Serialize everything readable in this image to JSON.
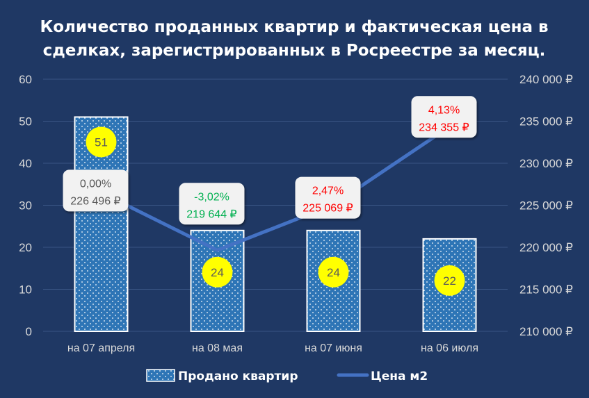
{
  "chart_data": {
    "type": "bar+line",
    "title_lines": [
      "Количество проданных квартир и фактическая цена в",
      "сделках, зарегистрированных в Росреестре за месяц."
    ],
    "categories": [
      "на 07 апреля",
      "на 08 мая",
      "на 07 июня",
      "на 06 июля"
    ],
    "bar_series": {
      "name": "Продано квартир",
      "values": [
        51,
        24,
        24,
        22
      ],
      "labels": [
        "51",
        "24",
        "24",
        "22"
      ]
    },
    "line_series": {
      "name": "Цена м2",
      "values": [
        226496,
        219644,
        225069,
        234355
      ],
      "price_labels": [
        "226 496 ₽",
        "219 644 ₽",
        "225 069 ₽",
        "234 355 ₽"
      ],
      "change_labels": [
        "0,00%",
        "-3,02%",
        "2,47%",
        "4,13%"
      ]
    },
    "y_left": {
      "min": 0,
      "max": 60,
      "ticks": [
        "0",
        "10",
        "20",
        "30",
        "40",
        "50",
        "60"
      ]
    },
    "y_right": {
      "min": 210000,
      "max": 240000,
      "ticks": [
        "210 000 ₽",
        "215 000 ₽",
        "220 000 ₽",
        "225 000 ₽",
        "230 000 ₽",
        "235 000 ₽",
        "240 000 ₽"
      ]
    },
    "grid": true,
    "legend": "bottom",
    "colors": {
      "background": "#1f3864",
      "bar_fill": "#2e75b6",
      "bar_border": "#ffffff",
      "line": "#4472c4",
      "badge": "#ffff00",
      "label_box": "#f2f2f2",
      "neutral_text": "#595959",
      "negative_change": "#00b050",
      "positive_change": "#ff0000",
      "axis_text": "#d9d9d9",
      "grid": "#3a5585"
    },
    "change_colors": [
      "neutral_text",
      "negative_change",
      "positive_change",
      "positive_change"
    ]
  }
}
